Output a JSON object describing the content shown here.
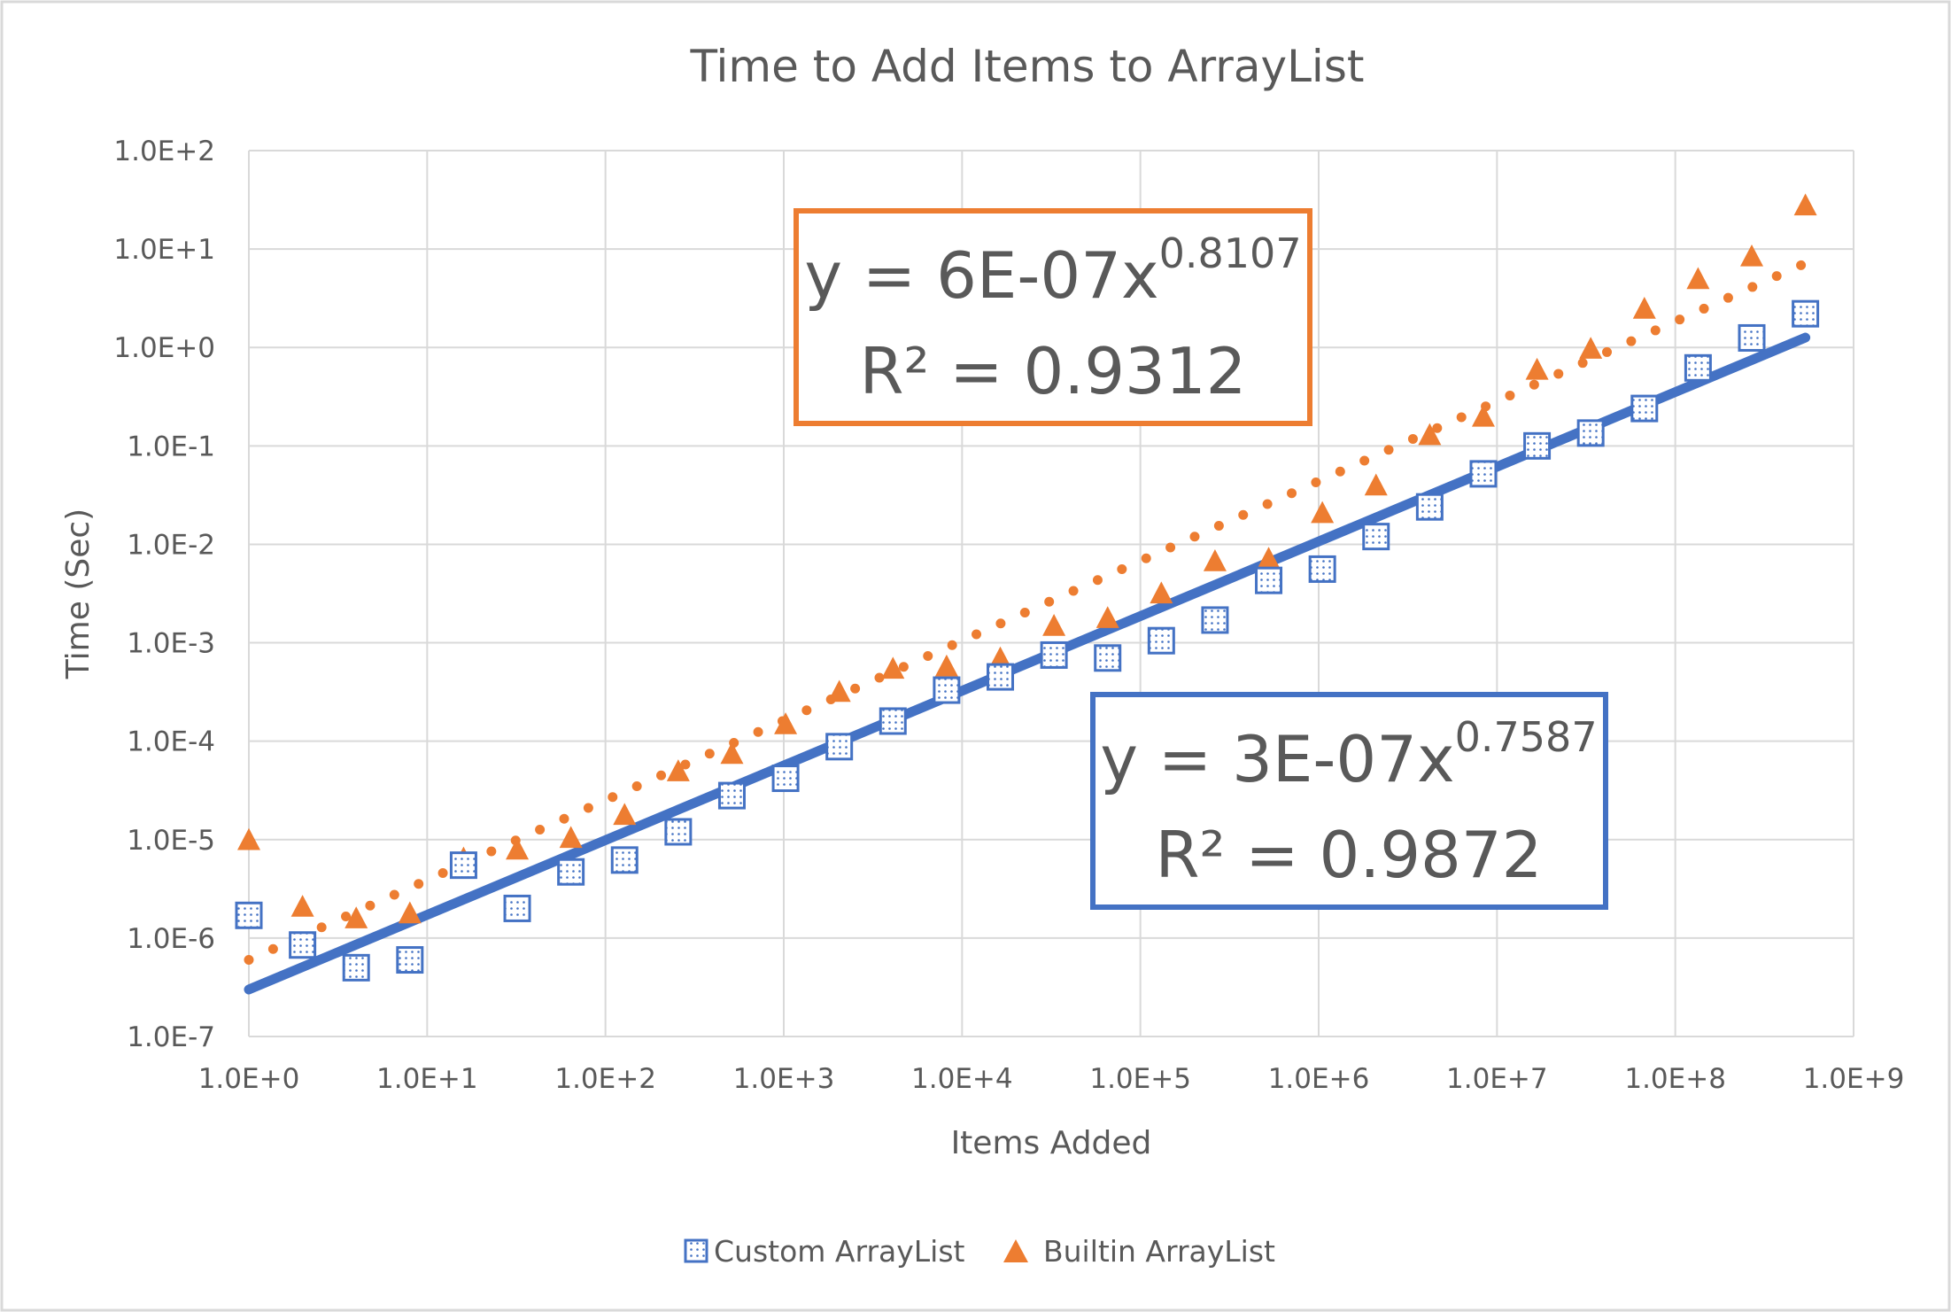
{
  "chart_data": {
    "type": "scatter",
    "title": "Time to Add Items to ArrayList",
    "xlabel": "Items Added",
    "ylabel": "Time (Sec)",
    "x_scale": "log",
    "y_scale": "log",
    "xlim": [
      1,
      1000000000
    ],
    "ylim": [
      1e-07,
      100
    ],
    "x_ticks": [
      {
        "value": 1,
        "label": "1.0E+0"
      },
      {
        "value": 10,
        "label": "1.0E+1"
      },
      {
        "value": 100,
        "label": "1.0E+2"
      },
      {
        "value": 1000,
        "label": "1.0E+3"
      },
      {
        "value": 10000,
        "label": "1.0E+4"
      },
      {
        "value": 100000,
        "label": "1.0E+5"
      },
      {
        "value": 1000000,
        "label": "1.0E+6"
      },
      {
        "value": 10000000,
        "label": "1.0E+7"
      },
      {
        "value": 100000000,
        "label": "1.0E+8"
      },
      {
        "value": 1000000000,
        "label": "1.0E+9"
      }
    ],
    "y_ticks": [
      {
        "value": 1e-07,
        "label": "1.0E-7"
      },
      {
        "value": 1e-06,
        "label": "1.0E-6"
      },
      {
        "value": 1e-05,
        "label": "1.0E-5"
      },
      {
        "value": 0.0001,
        "label": "1.0E-4"
      },
      {
        "value": 0.001,
        "label": "1.0E-3"
      },
      {
        "value": 0.01,
        "label": "1.0E-2"
      },
      {
        "value": 0.1,
        "label": "1.0E-1"
      },
      {
        "value": 1,
        "label": "1.0E+0"
      },
      {
        "value": 10,
        "label": "1.0E+1"
      },
      {
        "value": 100,
        "label": "1.0E+2"
      }
    ],
    "grid": true,
    "legend_position": "bottom",
    "x": [
      1,
      2,
      4,
      8,
      16,
      32,
      64,
      128,
      256,
      512,
      1024,
      2048,
      4096,
      8192,
      16384,
      32768,
      65536,
      131072,
      262144,
      524288,
      1048576,
      2097152,
      4194304,
      8388608,
      16777216,
      33554432,
      67108864,
      134217728,
      268435456,
      536870912
    ],
    "series": [
      {
        "name": "Custom ArrayList",
        "marker": "square-dotted",
        "color": "#4472c4",
        "values": [
          1.7e-06,
          8.5e-07,
          5e-07,
          6e-07,
          5.5e-06,
          2e-06,
          4.7e-06,
          6.2e-06,
          1.2e-05,
          2.8e-05,
          4.2e-05,
          8.8e-05,
          0.00016,
          0.00033,
          0.00045,
          0.00075,
          0.0007,
          0.00105,
          0.0017,
          0.0043,
          0.0056,
          0.012,
          0.024,
          0.052,
          0.1,
          0.135,
          0.24,
          0.62,
          1.25,
          2.2
        ],
        "trendline": {
          "type": "power",
          "coefficient": 3e-07,
          "exponent": 0.7587,
          "style": "solid",
          "equation": "y = 3E-07x",
          "exponent_label": "0.7587",
          "r2_label": "R² = 0.9872"
        }
      },
      {
        "name": "Builtin ArrayList",
        "marker": "triangle",
        "color": "#ed7d31",
        "values": [
          1e-05,
          2.1e-06,
          1.6e-06,
          1.8e-06,
          6.5e-06,
          8e-06,
          1.05e-05,
          1.8e-05,
          5e-05,
          7.5e-05,
          0.00015,
          0.00032,
          0.00055,
          0.00058,
          0.0007,
          0.0015,
          0.0018,
          0.0032,
          0.0068,
          0.0072,
          0.021,
          0.04,
          0.13,
          0.2,
          0.6,
          0.98,
          2.5,
          5,
          8.5,
          28
        ],
        "trendline": {
          "type": "power",
          "coefficient": 6e-07,
          "exponent": 0.8107,
          "style": "dotted",
          "equation": "y = 6E-07x",
          "exponent_label": "0.8107",
          "r2_label": "R² = 0.9312"
        }
      }
    ]
  }
}
